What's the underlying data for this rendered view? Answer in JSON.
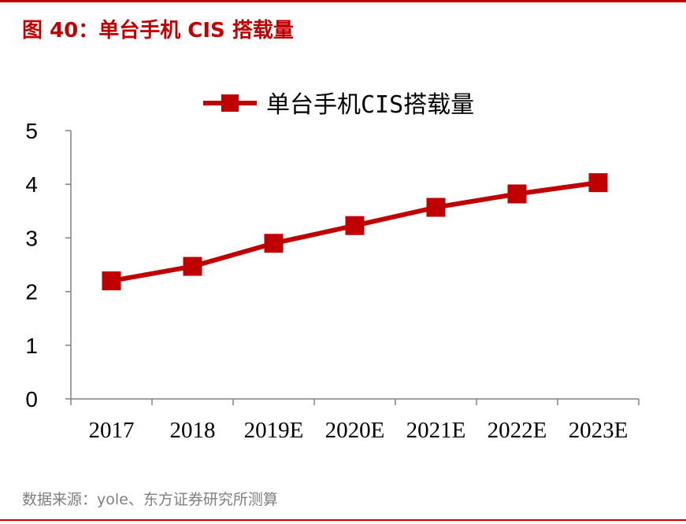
{
  "figure_title": "图 40：单台手机 CIS 搭载量",
  "source": "数据来源：yole、东方证券研究所测算",
  "colors": {
    "accent": "#c00000",
    "axis": "#808080",
    "text": "#000000",
    "muted": "#7f7f7f"
  },
  "chart_data": {
    "type": "line",
    "title": "",
    "xlabel": "",
    "ylabel": "",
    "categories": [
      "2017",
      "2018",
      "2019E",
      "2020E",
      "2021E",
      "2022E",
      "2023E"
    ],
    "series": [
      {
        "name": "单台手机CIS搭载量",
        "values": [
          2.2,
          2.47,
          2.9,
          3.23,
          3.57,
          3.82,
          4.03
        ],
        "color": "#c00000",
        "marker": "square"
      }
    ],
    "ylim": [
      0,
      5
    ],
    "yticks": [
      0,
      1,
      2,
      3,
      4,
      5
    ],
    "legend": "top-center",
    "grid": false
  }
}
